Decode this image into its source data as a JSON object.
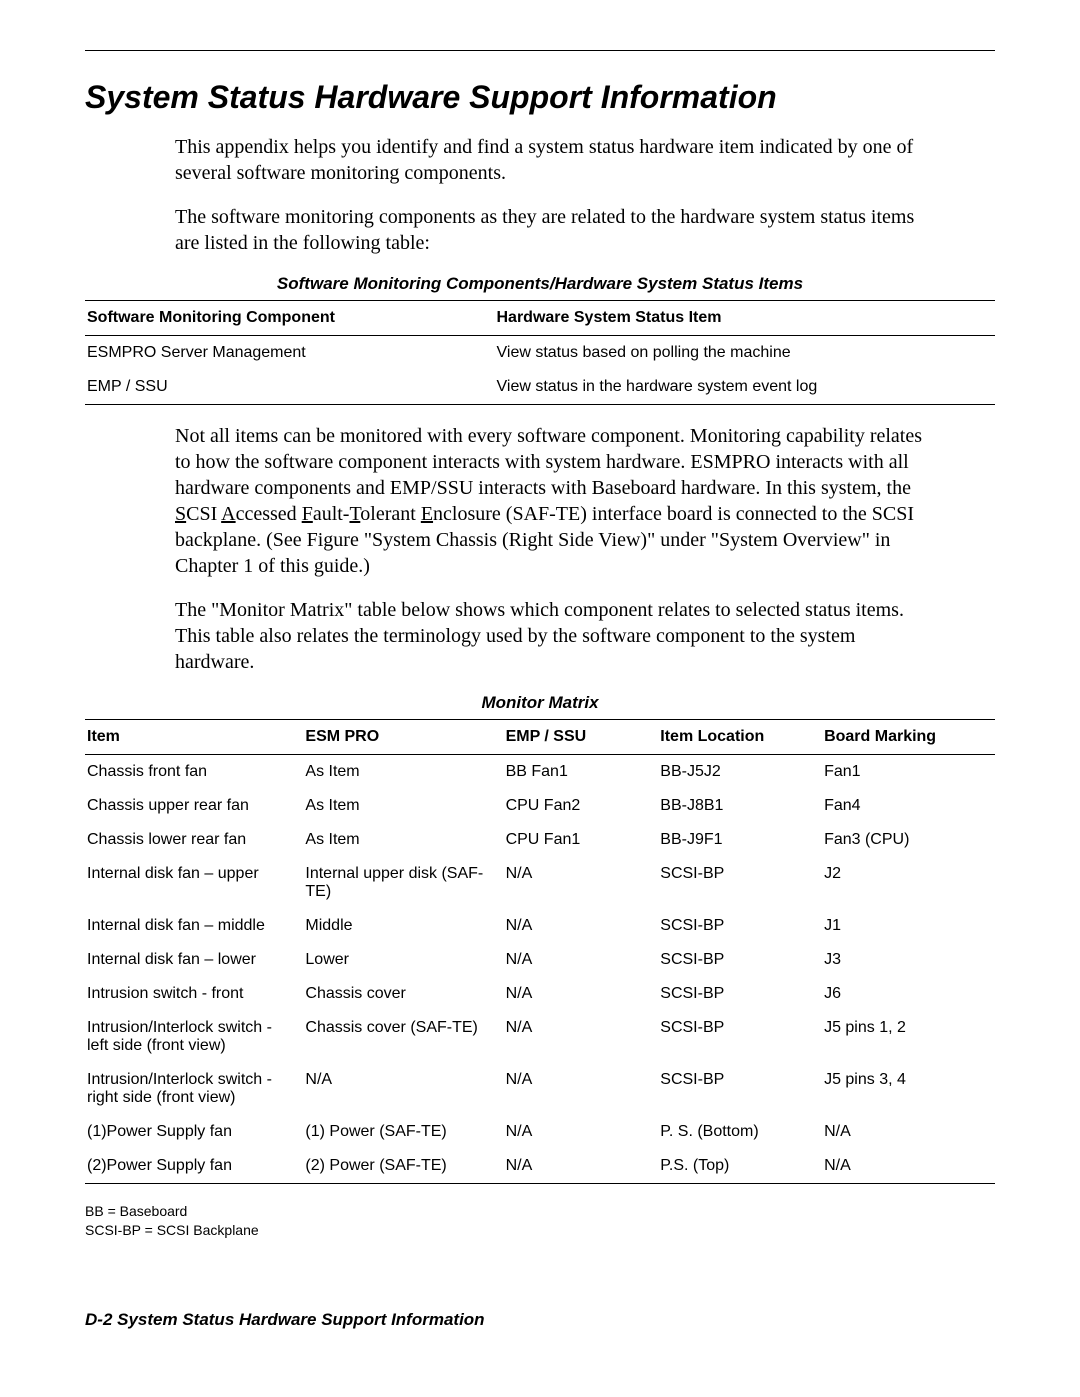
{
  "title": "System Status Hardware Support Information",
  "intro_p1": "This appendix helps you identify and find a system status hardware item indicated by one of several software monitoring components.",
  "intro_p2": "The software monitoring components as they are related to the hardware system status items are listed in the following table:",
  "table1": {
    "caption": "Software Monitoring Components/Hardware System Status Items",
    "columns": [
      "Software Monitoring Component",
      "Hardware System Status Item"
    ],
    "rows": [
      [
        "ESMPRO Server Management",
        "View status based on polling the machine"
      ],
      [
        "EMP / SSU",
        "View status in the hardware system event log"
      ]
    ]
  },
  "mid_p1_pre": "Not all items can be monitored with every software component. Monitoring capability relates to how the software component interacts with system hardware. ESMPRO interacts with all hardware components and EMP/SSU interacts with Baseboard hardware. In this system, the ",
  "safte_s": "S",
  "safte_rest1": "CSI ",
  "safte_a": "A",
  "safte_rest2": "ccessed ",
  "safte_f": "F",
  "safte_rest3": "ault-",
  "safte_t": "T",
  "safte_rest4": "olerant ",
  "safte_e": "E",
  "safte_rest5": "nclosure (SAF-TE) interface board is connected to the SCSI backplane. (See Figure \"System Chassis (Right Side View)\" under \"System Overview\" in Chapter 1 of this guide.)",
  "mid_p2": "The \"Monitor Matrix\" table below shows which component relates to selected status items. This table also relates the terminology used by the software component to the system hardware.",
  "table2": {
    "caption": "Monitor Matrix",
    "columns": [
      "Item",
      "ESM PRO",
      "EMP / SSU",
      "Item Location",
      "Board Marking"
    ],
    "rows": [
      [
        "Chassis front fan",
        "As Item",
        "BB Fan1",
        "BB-J5J2",
        "Fan1"
      ],
      [
        "Chassis upper rear fan",
        "As Item",
        "CPU Fan2",
        "BB-J8B1",
        "Fan4"
      ],
      [
        "Chassis lower rear fan",
        "As Item",
        "CPU Fan1",
        "BB-J9F1",
        "Fan3 (CPU)"
      ],
      [
        "Internal disk fan – upper",
        "Internal upper disk (SAF-TE)",
        "N/A",
        "SCSI-BP",
        "J2"
      ],
      [
        "Internal disk fan – middle",
        "Middle",
        "N/A",
        "SCSI-BP",
        "J1"
      ],
      [
        "Internal disk fan – lower",
        "Lower",
        "N/A",
        "SCSI-BP",
        "J3"
      ],
      [
        "Intrusion switch - front",
        "Chassis cover",
        "N/A",
        "SCSI-BP",
        "J6"
      ],
      [
        "Intrusion/Interlock switch - left side (front view)",
        "Chassis cover (SAF-TE)",
        "N/A",
        "SCSI-BP",
        "J5 pins 1, 2"
      ],
      [
        "Intrusion/Interlock switch - right side (front view)",
        "N/A",
        "N/A",
        "SCSI-BP",
        "J5 pins 3, 4"
      ],
      [
        "(1)Power Supply fan",
        "(1) Power (SAF-TE)",
        "N/A",
        "P. S. (Bottom)",
        "N/A"
      ],
      [
        "(2)Power Supply fan",
        "(2) Power (SAF-TE)",
        "N/A",
        "P.S. (Top)",
        "N/A"
      ]
    ],
    "col_widths": [
      "24%",
      "22%",
      "17%",
      "18%",
      "19%"
    ]
  },
  "footnote1": "BB = Baseboard",
  "footnote2": "SCSI-BP = SCSI Backplane",
  "footer": "D-2   System Status Hardware Support Information"
}
